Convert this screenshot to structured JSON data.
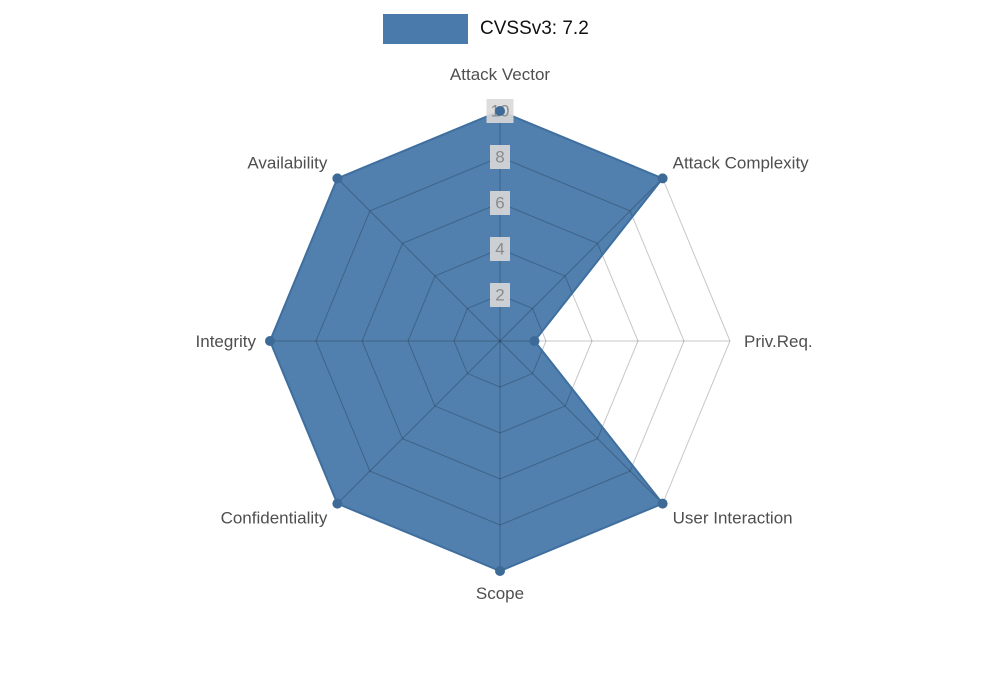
{
  "chart_data": {
    "type": "radar",
    "title": "CVSSv3: 7.2",
    "categories": [
      "Attack Vector",
      "Attack Complexity",
      "Priv.Req.",
      "User Interaction",
      "Scope",
      "Confidentiality",
      "Integrity",
      "Availability"
    ],
    "series": [
      {
        "name": "CVSSv3: 7.2",
        "values": [
          10,
          10,
          1.5,
          10,
          10,
          10,
          10,
          10
        ]
      }
    ],
    "ticks": [
      2,
      4,
      6,
      8,
      10
    ],
    "rmax": 10,
    "grid": true,
    "legend_position": "top-center",
    "colors": {
      "fill": "#4a7aab",
      "stroke": "#3f6f9e",
      "marker": "#3d6a96",
      "grid": "rgba(0,0,0,0.22)",
      "label": "#4f4f4f",
      "tick_text": "#8a8a8a",
      "tick_bg": "#d9d9d9"
    }
  }
}
